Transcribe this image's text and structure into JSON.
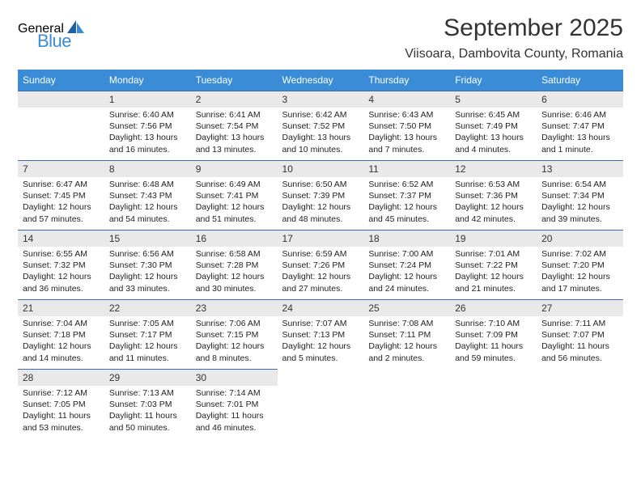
{
  "brand": {
    "line1": "General",
    "line2": "Blue",
    "sail_color": "#1f5fa8"
  },
  "title": "September 2025",
  "location": "Viisoara, Dambovita County, Romania",
  "colors": {
    "header_bg": "#3a8cd6",
    "daynum_bg": "#e9e9e9",
    "rule": "#3a6ea5"
  },
  "day_headers": [
    "Sunday",
    "Monday",
    "Tuesday",
    "Wednesday",
    "Thursday",
    "Friday",
    "Saturday"
  ],
  "weeks": [
    [
      null,
      {
        "n": "1",
        "sr": "6:40 AM",
        "ss": "7:56 PM",
        "dl": "13 hours and 16 minutes."
      },
      {
        "n": "2",
        "sr": "6:41 AM",
        "ss": "7:54 PM",
        "dl": "13 hours and 13 minutes."
      },
      {
        "n": "3",
        "sr": "6:42 AM",
        "ss": "7:52 PM",
        "dl": "13 hours and 10 minutes."
      },
      {
        "n": "4",
        "sr": "6:43 AM",
        "ss": "7:50 PM",
        "dl": "13 hours and 7 minutes."
      },
      {
        "n": "5",
        "sr": "6:45 AM",
        "ss": "7:49 PM",
        "dl": "13 hours and 4 minutes."
      },
      {
        "n": "6",
        "sr": "6:46 AM",
        "ss": "7:47 PM",
        "dl": "13 hours and 1 minute."
      }
    ],
    [
      {
        "n": "7",
        "sr": "6:47 AM",
        "ss": "7:45 PM",
        "dl": "12 hours and 57 minutes."
      },
      {
        "n": "8",
        "sr": "6:48 AM",
        "ss": "7:43 PM",
        "dl": "12 hours and 54 minutes."
      },
      {
        "n": "9",
        "sr": "6:49 AM",
        "ss": "7:41 PM",
        "dl": "12 hours and 51 minutes."
      },
      {
        "n": "10",
        "sr": "6:50 AM",
        "ss": "7:39 PM",
        "dl": "12 hours and 48 minutes."
      },
      {
        "n": "11",
        "sr": "6:52 AM",
        "ss": "7:37 PM",
        "dl": "12 hours and 45 minutes."
      },
      {
        "n": "12",
        "sr": "6:53 AM",
        "ss": "7:36 PM",
        "dl": "12 hours and 42 minutes."
      },
      {
        "n": "13",
        "sr": "6:54 AM",
        "ss": "7:34 PM",
        "dl": "12 hours and 39 minutes."
      }
    ],
    [
      {
        "n": "14",
        "sr": "6:55 AM",
        "ss": "7:32 PM",
        "dl": "12 hours and 36 minutes."
      },
      {
        "n": "15",
        "sr": "6:56 AM",
        "ss": "7:30 PM",
        "dl": "12 hours and 33 minutes."
      },
      {
        "n": "16",
        "sr": "6:58 AM",
        "ss": "7:28 PM",
        "dl": "12 hours and 30 minutes."
      },
      {
        "n": "17",
        "sr": "6:59 AM",
        "ss": "7:26 PM",
        "dl": "12 hours and 27 minutes."
      },
      {
        "n": "18",
        "sr": "7:00 AM",
        "ss": "7:24 PM",
        "dl": "12 hours and 24 minutes."
      },
      {
        "n": "19",
        "sr": "7:01 AM",
        "ss": "7:22 PM",
        "dl": "12 hours and 21 minutes."
      },
      {
        "n": "20",
        "sr": "7:02 AM",
        "ss": "7:20 PM",
        "dl": "12 hours and 17 minutes."
      }
    ],
    [
      {
        "n": "21",
        "sr": "7:04 AM",
        "ss": "7:18 PM",
        "dl": "12 hours and 14 minutes."
      },
      {
        "n": "22",
        "sr": "7:05 AM",
        "ss": "7:17 PM",
        "dl": "12 hours and 11 minutes."
      },
      {
        "n": "23",
        "sr": "7:06 AM",
        "ss": "7:15 PM",
        "dl": "12 hours and 8 minutes."
      },
      {
        "n": "24",
        "sr": "7:07 AM",
        "ss": "7:13 PM",
        "dl": "12 hours and 5 minutes."
      },
      {
        "n": "25",
        "sr": "7:08 AM",
        "ss": "7:11 PM",
        "dl": "12 hours and 2 minutes."
      },
      {
        "n": "26",
        "sr": "7:10 AM",
        "ss": "7:09 PM",
        "dl": "11 hours and 59 minutes."
      },
      {
        "n": "27",
        "sr": "7:11 AM",
        "ss": "7:07 PM",
        "dl": "11 hours and 56 minutes."
      }
    ],
    [
      {
        "n": "28",
        "sr": "7:12 AM",
        "ss": "7:05 PM",
        "dl": "11 hours and 53 minutes."
      },
      {
        "n": "29",
        "sr": "7:13 AM",
        "ss": "7:03 PM",
        "dl": "11 hours and 50 minutes."
      },
      {
        "n": "30",
        "sr": "7:14 AM",
        "ss": "7:01 PM",
        "dl": "11 hours and 46 minutes."
      },
      null,
      null,
      null,
      null
    ]
  ],
  "labels": {
    "sunrise": "Sunrise:",
    "sunset": "Sunset:",
    "daylight": "Daylight:"
  }
}
